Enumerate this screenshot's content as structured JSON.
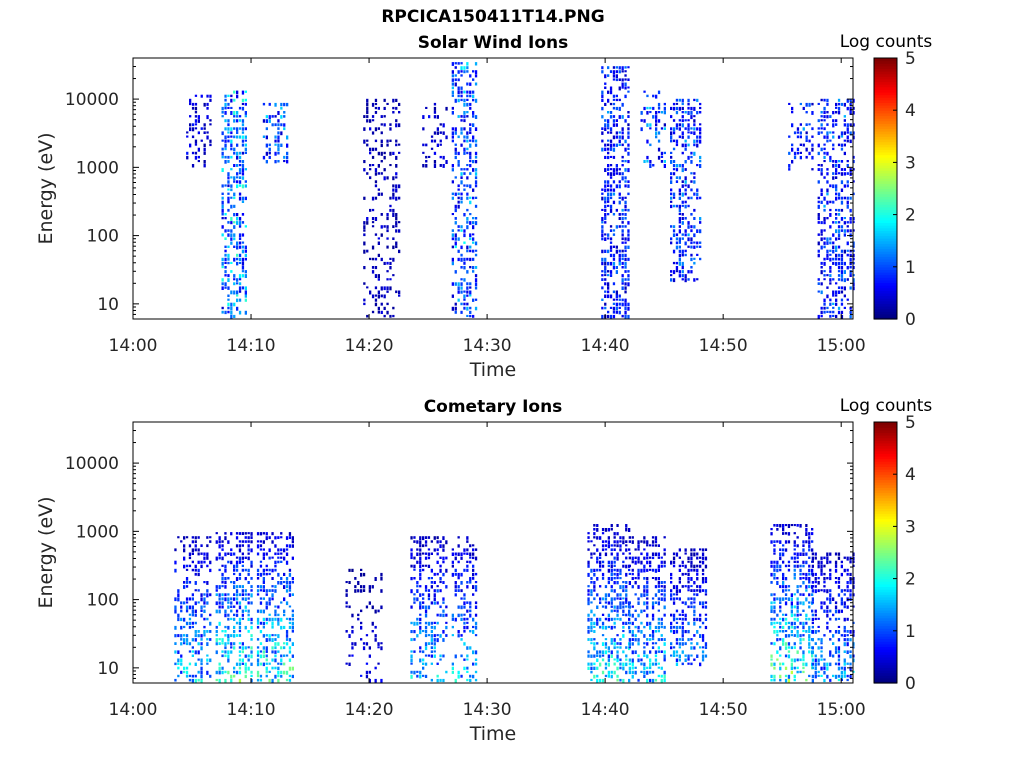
{
  "figure_title": "RPCICA150411T14.PNG",
  "colors": {
    "colormap": [
      "#00007f",
      "#0000ff",
      "#007fff",
      "#00ffff",
      "#7fff7f",
      "#ffff00",
      "#ff7f00",
      "#ff0000",
      "#7f0000"
    ]
  },
  "chart_data": [
    {
      "type": "heatmap",
      "title": "Solar Wind Ions",
      "xlabel": "Time",
      "ylabel": "Energy (eV)",
      "y_scale": "log",
      "ylim": [
        6,
        40000
      ],
      "xlim": [
        "14:00",
        "15:01"
      ],
      "x_ticks": [
        "14:00",
        "14:10",
        "14:20",
        "14:30",
        "14:40",
        "14:50",
        "15:00"
      ],
      "y_ticks": [
        {
          "value": 10,
          "label": "10"
        },
        {
          "value": 100,
          "label": "100"
        },
        {
          "value": 1000,
          "label": "1000"
        },
        {
          "value": 10000,
          "label": "10000"
        }
      ],
      "colorbar": {
        "label": "Log counts",
        "range": [
          0,
          5
        ],
        "ticks": [
          "0",
          "1",
          "2",
          "3",
          "4",
          "5"
        ]
      },
      "bursts": [
        {
          "start": "14:04:30",
          "end": "14:06:30",
          "emin": 1000,
          "emax": 12000,
          "peak": 1.0,
          "density": 0.35
        },
        {
          "start": "14:07:30",
          "end": "14:09:40",
          "emin": 6,
          "emax": 14000,
          "peak": 2.4,
          "density": 0.5
        },
        {
          "start": "14:11:00",
          "end": "14:13:00",
          "emin": 1100,
          "emax": 9000,
          "peak": 2.0,
          "density": 0.45
        },
        {
          "start": "14:19:30",
          "end": "14:22:30",
          "emin": 6,
          "emax": 10000,
          "peak": 0.6,
          "density": 0.3
        },
        {
          "start": "14:24:30",
          "end": "14:26:30",
          "emin": 1000,
          "emax": 9000,
          "peak": 0.8,
          "density": 0.25
        },
        {
          "start": "14:27:00",
          "end": "14:29:10",
          "emin": 6,
          "emax": 35000,
          "peak": 2.0,
          "density": 0.5
        },
        {
          "start": "14:39:40",
          "end": "14:42:00",
          "emin": 6,
          "emax": 30000,
          "peak": 1.5,
          "density": 0.55
        },
        {
          "start": "14:43:00",
          "end": "14:45:10",
          "emin": 1000,
          "emax": 13000,
          "peak": 1.8,
          "density": 0.35
        },
        {
          "start": "14:45:30",
          "end": "14:48:00",
          "emin": 20,
          "emax": 10000,
          "peak": 1.6,
          "density": 0.45
        },
        {
          "start": "14:55:30",
          "end": "14:57:30",
          "emin": 900,
          "emax": 9000,
          "peak": 1.6,
          "density": 0.35
        },
        {
          "start": "14:58:00",
          "end": "15:01:00",
          "emin": 6,
          "emax": 10000,
          "peak": 1.6,
          "density": 0.5
        }
      ]
    },
    {
      "type": "heatmap",
      "title": "Cometary Ions",
      "xlabel": "Time",
      "ylabel": "Energy (eV)",
      "y_scale": "log",
      "ylim": [
        6,
        40000
      ],
      "xlim": [
        "14:00",
        "15:01"
      ],
      "x_ticks": [
        "14:00",
        "14:10",
        "14:20",
        "14:30",
        "14:40",
        "14:50",
        "15:00"
      ],
      "y_ticks": [
        {
          "value": 10,
          "label": "10"
        },
        {
          "value": 100,
          "label": "100"
        },
        {
          "value": 1000,
          "label": "1000"
        },
        {
          "value": 10000,
          "label": "10000"
        }
      ],
      "colorbar": {
        "label": "Log counts",
        "range": [
          0,
          5
        ],
        "ticks": [
          "0",
          "1",
          "2",
          "3",
          "4",
          "5"
        ]
      },
      "bursts": [
        {
          "start": "14:03:30",
          "end": "14:06:30",
          "emin": 6,
          "emax": 800,
          "peak": 2.2,
          "density": 0.45
        },
        {
          "start": "14:07:00",
          "end": "14:10:00",
          "emin": 6,
          "emax": 1000,
          "peak": 2.8,
          "density": 0.55
        },
        {
          "start": "14:10:30",
          "end": "14:13:30",
          "emin": 6,
          "emax": 1000,
          "peak": 2.8,
          "density": 0.55
        },
        {
          "start": "14:18:00",
          "end": "14:21:00",
          "emin": 6,
          "emax": 300,
          "peak": 0.8,
          "density": 0.2
        },
        {
          "start": "14:23:30",
          "end": "14:26:30",
          "emin": 6,
          "emax": 800,
          "peak": 2.2,
          "density": 0.45
        },
        {
          "start": "14:27:00",
          "end": "14:29:00",
          "emin": 6,
          "emax": 900,
          "peak": 2.2,
          "density": 0.45
        },
        {
          "start": "14:38:30",
          "end": "14:42:00",
          "emin": 6,
          "emax": 1200,
          "peak": 2.5,
          "density": 0.55
        },
        {
          "start": "14:42:00",
          "end": "14:45:00",
          "emin": 6,
          "emax": 800,
          "peak": 2.3,
          "density": 0.55
        },
        {
          "start": "14:45:30",
          "end": "14:48:30",
          "emin": 10,
          "emax": 600,
          "peak": 1.8,
          "density": 0.5
        },
        {
          "start": "14:54:00",
          "end": "14:57:30",
          "emin": 6,
          "emax": 1200,
          "peak": 3.0,
          "density": 0.5
        },
        {
          "start": "14:57:30",
          "end": "15:01:00",
          "emin": 6,
          "emax": 500,
          "peak": 2.0,
          "density": 0.5
        }
      ]
    }
  ]
}
